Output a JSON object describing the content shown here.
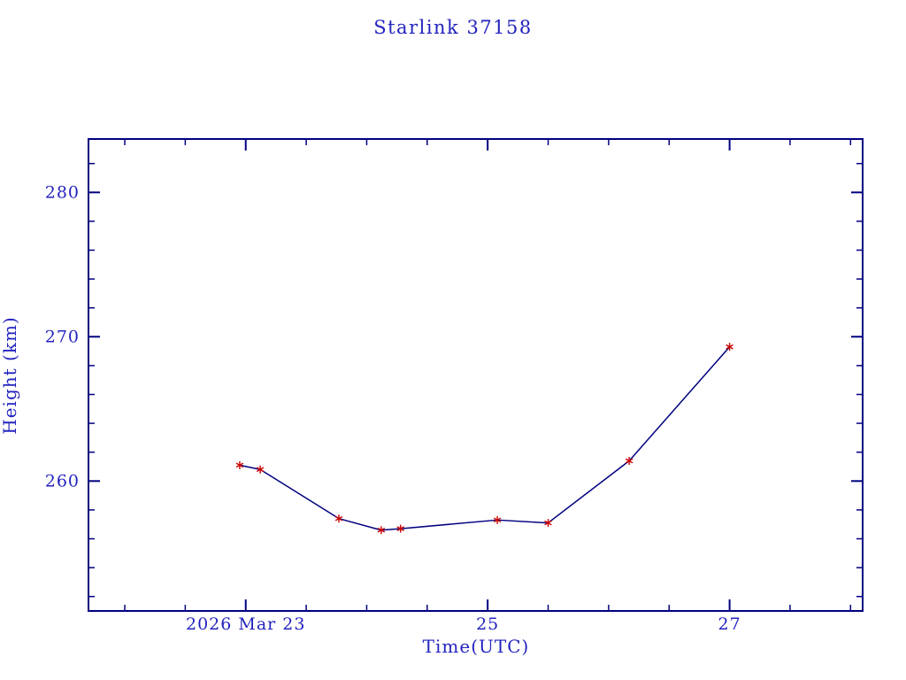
{
  "page": {
    "background": "#ffffff"
  },
  "chart_data": {
    "type": "line",
    "title": "Starlink 37158",
    "xlabel": "Time(UTC)",
    "ylabel": "Height (km)",
    "xlim": [
      21.7,
      28.1
    ],
    "ylim": [
      251.0,
      283.7
    ],
    "grid": false,
    "legend": "none",
    "x_tick_labels": [
      {
        "value": 23,
        "label": "2026 Mar 23"
      },
      {
        "value": 25,
        "label": "25"
      },
      {
        "value": 27,
        "label": "27"
      }
    ],
    "y_tick_labels": [
      {
        "value": 260,
        "label": "260"
      },
      {
        "value": 270,
        "label": "270"
      },
      {
        "value": 280,
        "label": "280"
      }
    ],
    "x_minor_step": 0.5,
    "y_minor_step": 2,
    "series": [
      {
        "name": "height",
        "x": [
          22.95,
          23.12,
          23.77,
          24.12,
          24.28,
          25.08,
          25.5,
          26.17,
          27.0
        ],
        "y": [
          261.1,
          260.8,
          257.4,
          256.6,
          256.7,
          257.3,
          257.1,
          261.4,
          269.3
        ],
        "line_color": "#000080",
        "marker": "asterisk",
        "marker_color": "#cc0000"
      }
    ],
    "colors": {
      "frame": "#000080",
      "text": "#2323bf"
    }
  }
}
